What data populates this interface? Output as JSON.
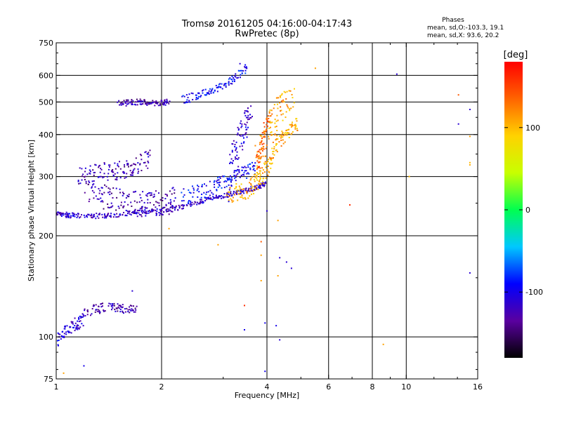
{
  "chart_data": {
    "type": "scatter",
    "title": "Tromsø 20161205 04:16:00-04:17:43",
    "subtitle": "RwPretec (8p)",
    "xlabel": "Frequency [MHz]",
    "ylabel": "Stationary phase Virtual Height [km]",
    "x_scale": "log",
    "y_scale": "log",
    "xlim": [
      1,
      16
    ],
    "ylim": [
      75,
      750
    ],
    "x_ticks": [
      1,
      2,
      4,
      6,
      8,
      10,
      16
    ],
    "x_tick_labels": [
      "1",
      "2",
      "4",
      "6",
      "8",
      "10",
      "16"
    ],
    "y_ticks": [
      75,
      100,
      200,
      300,
      400,
      500,
      600,
      750
    ],
    "y_tick_labels": [
      "75",
      "100",
      "200",
      "300",
      "400",
      "500",
      "600",
      "750"
    ],
    "x_gridlines": [
      2,
      4,
      6,
      8,
      10
    ],
    "y_gridlines": [
      100,
      200,
      300,
      400,
      500,
      600
    ],
    "grid": true,
    "phase_info": {
      "heading": "Phases",
      "o_line": "mean, sd,O:-103.3, 19.1",
      "x_line": "mean, sd,X:  93.6, 20.2"
    },
    "colorbar": {
      "label": "[deg]",
      "ticks": [
        100,
        0,
        -100
      ],
      "tick_labels": [
        "100",
        "0",
        "-100"
      ],
      "range": [
        -180,
        180
      ],
      "colors": [
        "#000000",
        "#5a00a0",
        "#0000ff",
        "#00c8ff",
        "#00ff50",
        "#c8ff00",
        "#ffd200",
        "#ff6400",
        "#ff0000"
      ]
    },
    "traces": [
      {
        "freq": [
          1.0,
          1.05,
          1.1,
          1.2,
          1.3,
          1.4,
          1.55,
          1.7,
          1.85,
          2.0,
          2.2,
          2.4,
          2.6,
          2.8,
          3.0,
          3.2,
          3.4,
          3.6,
          3.8,
          3.95
        ],
        "height": [
          232,
          231,
          230,
          229,
          229,
          230,
          232,
          234,
          236,
          238,
          242,
          247,
          253,
          258,
          263,
          267,
          271,
          275,
          280,
          285
        ],
        "phase": -115,
        "spread": 4
      },
      {
        "freq": [
          1.2,
          1.3,
          1.4,
          1.5,
          1.6,
          1.7,
          1.8,
          1.9,
          2.0,
          2.1,
          2.2
        ],
        "height": [
          280,
          268,
          260,
          255,
          252,
          250,
          249,
          250,
          252,
          254,
          258
        ],
        "phase": -125,
        "spread": 22
      },
      {
        "freq": [
          2.3,
          2.5,
          2.7,
          2.9,
          3.1,
          3.3,
          3.5,
          3.7
        ],
        "height": [
          262,
          268,
          275,
          283,
          292,
          300,
          310,
          320
        ],
        "phase": -95,
        "spread": 15
      },
      {
        "freq": [
          1.5,
          1.6,
          1.7,
          1.8,
          1.9,
          2.0,
          2.1
        ],
        "height": [
          495,
          497,
          500,
          498,
          496,
          497,
          500
        ],
        "phase": -125,
        "spread": 10
      },
      {
        "freq": [
          2.3,
          2.5,
          2.7,
          2.9,
          3.1,
          3.3,
          3.5
        ],
        "height": [
          510,
          520,
          535,
          550,
          570,
          600,
          630
        ],
        "phase": -95,
        "spread": 15
      },
      {
        "freq": [
          1.15,
          1.25,
          1.35,
          1.45,
          1.55,
          1.65,
          1.75,
          1.85
        ],
        "height": [
          300,
          305,
          310,
          312,
          315,
          320,
          330,
          340
        ],
        "phase": -125,
        "spread": 20
      },
      {
        "freq": [
          3.1,
          3.2,
          3.3,
          3.4,
          3.5,
          3.6
        ],
        "height": [
          290,
          330,
          370,
          410,
          440,
          470
        ],
        "phase": -110,
        "spread": 45
      },
      {
        "freq": [
          3.1,
          3.3,
          3.5,
          3.7,
          3.85,
          4.0,
          4.15,
          4.3,
          4.5,
          4.7,
          4.9
        ],
        "height": [
          265,
          270,
          275,
          285,
          295,
          320,
          350,
          380,
          400,
          420,
          430
        ],
        "phase": 105,
        "spread": 18
      },
      {
        "freq": [
          3.7,
          3.85,
          4.0,
          4.15,
          4.3,
          4.5,
          4.8
        ],
        "height": [
          320,
          360,
          400,
          440,
          470,
          490,
          500
        ],
        "phase": 110,
        "spread": 50
      },
      {
        "freq": [
          3.75,
          3.85,
          3.95,
          4.05
        ],
        "height": [
          330,
          370,
          410,
          450
        ],
        "phase": 140,
        "spread": 25
      },
      {
        "freq": [
          1.0,
          1.05,
          1.1,
          1.15,
          1.2
        ],
        "height": [
          97,
          102,
          106,
          110,
          113
        ],
        "phase": -110,
        "spread": 5
      },
      {
        "freq": [
          1.2,
          1.3,
          1.4,
          1.5,
          1.6,
          1.7
        ],
        "height": [
          118,
          121,
          123,
          122,
          121,
          121
        ],
        "phase": -125,
        "spread": 4
      }
    ],
    "scattered_points": [
      {
        "freq": 9.4,
        "height": 605,
        "phase": -110
      },
      {
        "freq": 14.1,
        "height": 525,
        "phase": 140
      },
      {
        "freq": 15.2,
        "height": 475,
        "phase": -110
      },
      {
        "freq": 14.1,
        "height": 430,
        "phase": -110
      },
      {
        "freq": 15.2,
        "height": 395,
        "phase": 110
      },
      {
        "freq": 15.2,
        "height": 330,
        "phase": 100
      },
      {
        "freq": 15.2,
        "height": 325,
        "phase": 105
      },
      {
        "freq": 10.2,
        "height": 300,
        "phase": 100
      },
      {
        "freq": 6.9,
        "height": 247,
        "phase": 160
      },
      {
        "freq": 4.0,
        "height": 237,
        "phase": -110
      },
      {
        "freq": 4.3,
        "height": 222,
        "phase": 110
      },
      {
        "freq": 2.1,
        "height": 210,
        "phase": 110
      },
      {
        "freq": 2.9,
        "height": 188,
        "phase": 110
      },
      {
        "freq": 3.85,
        "height": 192,
        "phase": 140
      },
      {
        "freq": 3.85,
        "height": 175,
        "phase": 110
      },
      {
        "freq": 4.35,
        "height": 172,
        "phase": -110
      },
      {
        "freq": 4.55,
        "height": 167,
        "phase": -110
      },
      {
        "freq": 4.7,
        "height": 160,
        "phase": -110
      },
      {
        "freq": 4.3,
        "height": 152,
        "phase": 110
      },
      {
        "freq": 3.85,
        "height": 147,
        "phase": 110
      },
      {
        "freq": 1.65,
        "height": 137,
        "phase": -110
      },
      {
        "freq": 15.2,
        "height": 155,
        "phase": -110
      },
      {
        "freq": 3.95,
        "height": 110,
        "phase": -100
      },
      {
        "freq": 4.25,
        "height": 108,
        "phase": -100
      },
      {
        "freq": 4.35,
        "height": 98,
        "phase": -110
      },
      {
        "freq": 3.45,
        "height": 105,
        "phase": -100
      },
      {
        "freq": 3.45,
        "height": 124,
        "phase": 160
      },
      {
        "freq": 8.6,
        "height": 95,
        "phase": 110
      },
      {
        "freq": 3.95,
        "height": 79,
        "phase": -100
      },
      {
        "freq": 1.2,
        "height": 82,
        "phase": -100
      },
      {
        "freq": 1.05,
        "height": 78,
        "phase": 110
      },
      {
        "freq": 5.5,
        "height": 630,
        "phase": 110
      },
      {
        "freq": 3.35,
        "height": 650,
        "phase": -110
      }
    ]
  }
}
